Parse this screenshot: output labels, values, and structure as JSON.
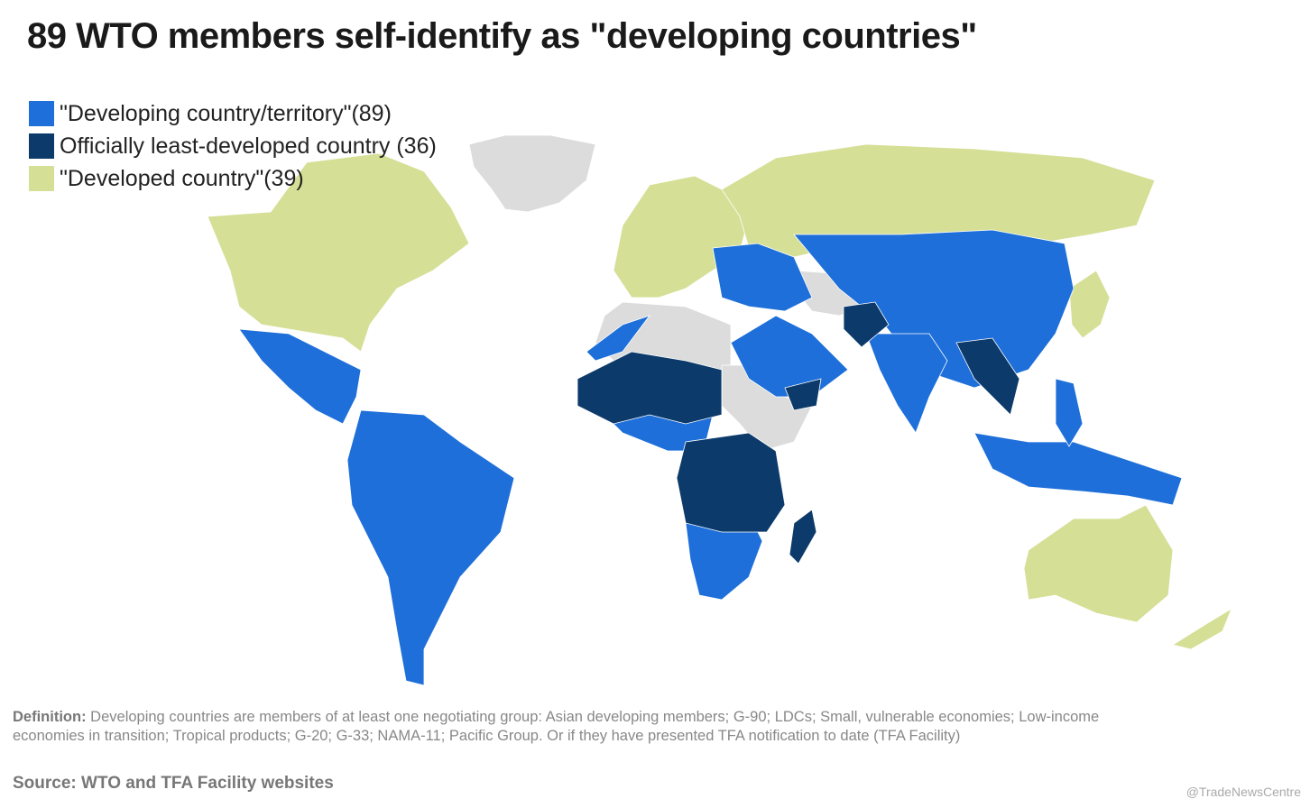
{
  "title": "89 WTO members self-identify as \"developing countries\"",
  "legend": [
    {
      "label": "\"Developing country/territory\"(89)",
      "color": "#1e6fd9"
    },
    {
      "label": "Officially least-developed country (36)",
      "color": "#0c3a6b"
    },
    {
      "label": "\"Developed country\"(39)",
      "color": "#d5df95"
    }
  ],
  "definition": {
    "label": "Definition:",
    "text": "Developing countries are members of at least one negotiating group: Asian developing members; G-90; LDCs; Small, vulnerable economies; Low-income economies in transition; Tropical products; G-20; G-33; NAMA-11; Pacific Group. Or if they have presented TFA notification to date (TFA Facility)"
  },
  "source": "Source: WTO and TFA Facility websites",
  "watermark": "@TradeNewsCentre"
}
